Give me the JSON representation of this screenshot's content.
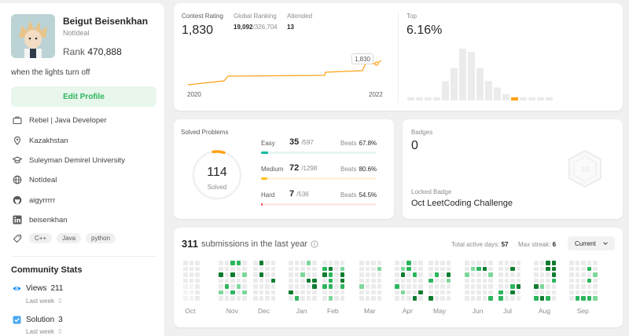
{
  "profile": {
    "name": "Beigut Beisenkhan",
    "username": "NotIdeal",
    "rank_label": "Rank",
    "rank_value": "470,888",
    "bio": "when the lights turn off",
    "edit_label": "Edit Profile",
    "info": {
      "job": "Rebel | Java Developer",
      "location": "Kazakhstan",
      "school": "Suleyman Demirel University",
      "website": "NotIdeal",
      "github": "aigyrrrrr",
      "linkedin": "beisenkhan"
    },
    "skills": [
      "C++",
      "Java",
      "python"
    ]
  },
  "community": {
    "title": "Community Stats",
    "views_label": "Views",
    "views_value": "211",
    "views_sub_label": "Last week",
    "views_sub_value": "0",
    "solution_label": "Solution",
    "solution_value": "3",
    "solution_sub_label": "Last week",
    "solution_sub_value": "0"
  },
  "contest": {
    "rating_label": "Contest Rating",
    "rating_value": "1,830",
    "global_label": "Global Ranking",
    "global_value": "19,092",
    "global_total": "/326,704",
    "attended_label": "Attended",
    "attended_value": "13",
    "tooltip": "1,830",
    "x_start": "2020",
    "x_end": "2022",
    "top_label": "Top",
    "top_value": "6.16%"
  },
  "chart_data": {
    "type": "bar",
    "title": "Top",
    "highlight_index": 12,
    "values": [
      1,
      1,
      1,
      1,
      6,
      10,
      16,
      15,
      10,
      6,
      4,
      2,
      1,
      1,
      1,
      1,
      1
    ]
  },
  "solved": {
    "title": "Solved Problems",
    "total": "114",
    "total_label": "Solved",
    "easy_label": "Easy",
    "easy_count": "35",
    "easy_total": "/597",
    "easy_beats_label": "Beats",
    "easy_beats": "67.8%",
    "easy_fraction": 0.059,
    "medium_label": "Medium",
    "medium_count": "72",
    "medium_total": "/1298",
    "medium_beats_label": "Beats",
    "medium_beats": "80.6%",
    "medium_fraction": 0.055,
    "hard_label": "Hard",
    "hard_count": "7",
    "hard_total": "/536",
    "hard_beats_label": "Beats",
    "hard_beats": "54.5%",
    "hard_fraction": 0.013
  },
  "badges": {
    "title": "Badges",
    "count": "0",
    "locked_label": "Locked Badge",
    "locked_name": "Oct LeetCoding Challenge"
  },
  "submissions": {
    "count": "311",
    "label": "submissions in the last year",
    "active_label": "Total active days:",
    "active_value": "57",
    "streak_label": "Max streak:",
    "streak_value": "6",
    "select_value": "Current",
    "months": [
      "Oct",
      "Nov",
      "Dec",
      "Jan",
      "Feb",
      "Mar",
      "Apr",
      "May",
      "Jun",
      "Jul",
      "Aug",
      "Sep"
    ]
  },
  "colors": {
    "accent_green": "#2db55d",
    "easy": "#00b8a3",
    "medium": "#ffc01e",
    "hard": "#ef4743",
    "contest_line": "#ffa116",
    "bar_gray": "#ebebeb",
    "bar_highlight": "#ffa116"
  }
}
